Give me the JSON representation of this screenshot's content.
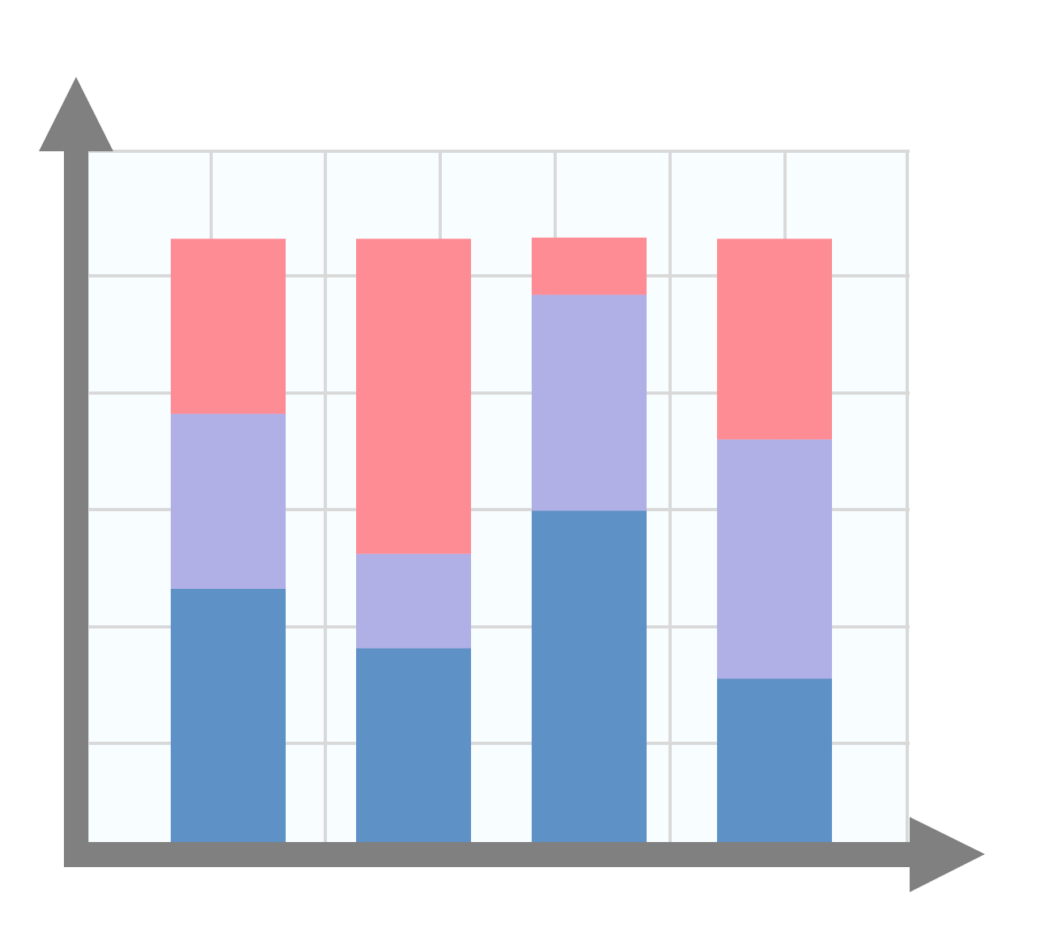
{
  "chart_data": {
    "type": "bar",
    "stacked": true,
    "categories": [
      "",
      "",
      "",
      ""
    ],
    "series": [
      {
        "values": [
          2.17,
          1.66,
          2.84,
          1.4
        ],
        "color": "#5e91c6"
      },
      {
        "values": [
          1.5,
          0.81,
          1.85,
          2.05
        ],
        "color": "#b0afe6"
      },
      {
        "values": [
          1.5,
          2.7,
          0.49,
          1.72
        ],
        "color": "#fe8c95"
      }
    ],
    "ylim": [
      0,
      5.92
    ],
    "grid": true,
    "legend": "none",
    "axis_arrows": true,
    "tick_labels": false,
    "colors": {
      "axis": "#808080",
      "grid": "#d9d9d9",
      "plot_background": "#f8fdff"
    }
  }
}
